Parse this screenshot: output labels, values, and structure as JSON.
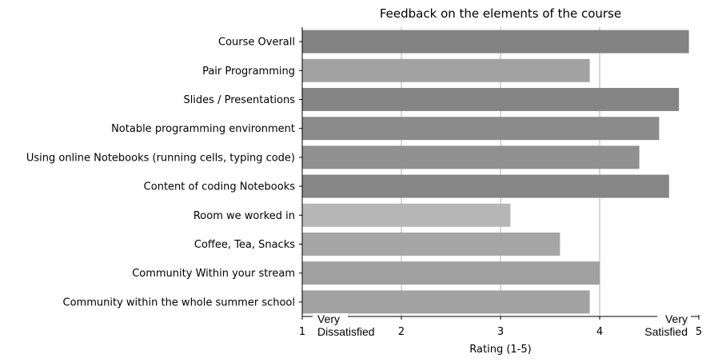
{
  "chart_data": {
    "type": "bar",
    "orientation": "horizontal",
    "title": "Feedback on the elements of the course",
    "xlabel": "Rating (1-5)",
    "ylabel": "",
    "xlim": [
      1,
      5
    ],
    "xticks": [
      "1",
      "2",
      "3",
      "4",
      "5"
    ],
    "grid": "vertical gridlines at 2, 3, 4",
    "categories": [
      "Course Overall",
      "Pair Programming",
      "Slides / Presentations",
      "Notable programming environment",
      "Using online Notebooks (running cells, typing code)",
      "Content of coding Notebooks",
      "Room we worked in",
      "Coffee, Tea, Snacks",
      "Community Within your stream",
      "Community within the whole summer school"
    ],
    "values": [
      4.9,
      3.9,
      4.8,
      4.6,
      4.4,
      4.7,
      3.1,
      3.6,
      4.0,
      3.9
    ],
    "bar_colors": [
      "#838383",
      "#a2a2a2",
      "#858585",
      "#8b8b8b",
      "#909090",
      "#868686",
      "#b6b6b6",
      "#a6a6a6",
      "#a0a0a0",
      "#a2a2a2"
    ],
    "scale_labels": {
      "low": [
        "Very",
        "Dissatisfied"
      ],
      "high": [
        "Very",
        "Satisfied"
      ]
    }
  }
}
